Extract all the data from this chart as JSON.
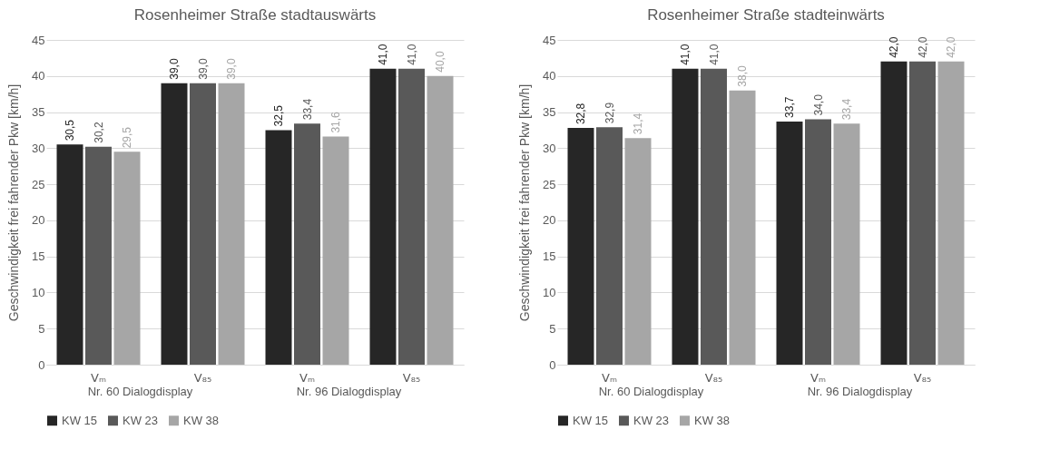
{
  "chart_data": [
    {
      "type": "bar",
      "title": "Rosenheimer Straße stadtauswärts",
      "ylabel": "Geschwindigkeit frei fahrender Pkw [km/h]",
      "categories": [
        "Vₘ",
        "V₈₅",
        "Vₘ",
        "V₈₅"
      ],
      "annotations": [
        "Nr. 60 Dialogdisplay",
        "Nr. 96 Dialogdisplay"
      ],
      "ylim": [
        0,
        45
      ],
      "yticks": [
        0,
        5,
        10,
        15,
        20,
        25,
        30,
        35,
        40,
        45
      ],
      "grid": true,
      "legend": "bottom",
      "series": [
        {
          "name": "KW 15",
          "color": "#262626",
          "values": [
            30.5,
            39.0,
            32.5,
            41.0
          ],
          "value_labels": [
            "30,5",
            "39,0",
            "32,5",
            "41,0"
          ]
        },
        {
          "name": "KW 23",
          "color": "#595959",
          "values": [
            30.2,
            39.0,
            33.4,
            41.0
          ],
          "value_labels": [
            "30,2",
            "39,0",
            "33,4",
            "41,0"
          ]
        },
        {
          "name": "KW 38",
          "color": "#a6a6a6",
          "values": [
            29.5,
            39.0,
            31.6,
            40.0
          ],
          "value_labels": [
            "29,5",
            "39,0",
            "31,6",
            "40,0"
          ]
        }
      ]
    },
    {
      "type": "bar",
      "title": "Rosenheimer Straße stadteinwärts",
      "ylabel": "Geschwindigkeit frei fahrender Pkw [km/h]",
      "categories": [
        "Vₘ",
        "V₈₅",
        "Vₘ",
        "V₈₅"
      ],
      "annotations": [
        "Nr. 60 Dialogdisplay",
        "Nr. 96 Dialogdisplay"
      ],
      "ylim": [
        0,
        45
      ],
      "yticks": [
        0,
        5,
        10,
        15,
        20,
        25,
        30,
        35,
        40,
        45
      ],
      "grid": true,
      "legend": "bottom",
      "series": [
        {
          "name": "KW 15",
          "color": "#262626",
          "values": [
            32.8,
            41.0,
            33.7,
            42.0
          ],
          "value_labels": [
            "32,8",
            "41,0",
            "33,7",
            "42,0"
          ]
        },
        {
          "name": "KW 23",
          "color": "#595959",
          "values": [
            32.9,
            41.0,
            34.0,
            42.0
          ],
          "value_labels": [
            "32,9",
            "41,0",
            "34,0",
            "42,0"
          ]
        },
        {
          "name": "KW 38",
          "color": "#a6a6a6",
          "values": [
            31.4,
            38.0,
            33.4,
            42.0
          ],
          "value_labels": [
            "31,4",
            "38,0",
            "33,4",
            "42,0"
          ]
        }
      ]
    }
  ]
}
